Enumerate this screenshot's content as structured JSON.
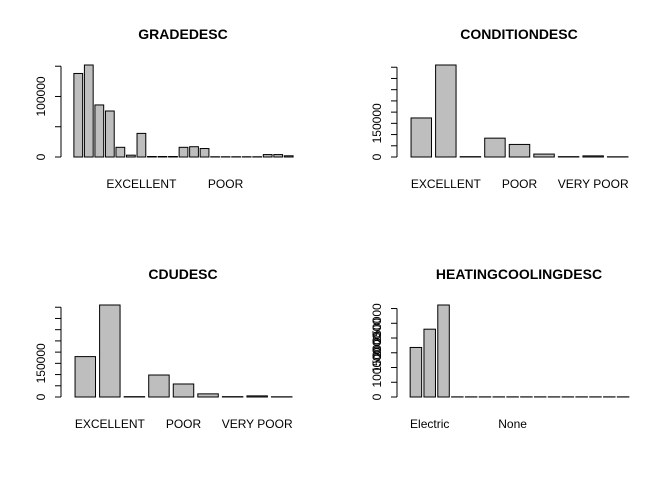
{
  "chart_data": [
    {
      "type": "bar",
      "title": "GRADEDESC",
      "values": [
        138000,
        152000,
        86000,
        76000,
        16000,
        3000,
        39000,
        800,
        800,
        800,
        16000,
        17000,
        14000,
        400,
        400,
        400,
        400,
        400,
        4000,
        4000,
        2000
      ],
      "x_tick_labels": [
        {
          "bar": 6,
          "label": "EXCELLENT"
        },
        {
          "bar": 14,
          "label": "POOR"
        }
      ],
      "y_ticks": [
        0,
        100000
      ],
      "y_tick_marks": [
        0,
        50000,
        100000,
        150000
      ],
      "ylim": [
        0,
        152000
      ],
      "xlabel": "",
      "ylabel": ""
    },
    {
      "type": "bar",
      "title": "CONDITIONDESC",
      "values": [
        174000,
        410000,
        1500,
        84000,
        56000,
        13000,
        1500,
        5000,
        1000
      ],
      "x_tick_labels": [
        {
          "bar": 1,
          "label": "EXCELLENT"
        },
        {
          "bar": 4,
          "label": "POOR"
        },
        {
          "bar": 7,
          "label": "VERY POOR"
        }
      ],
      "y_ticks": [
        0,
        150000
      ],
      "y_tick_marks": [
        0,
        50000,
        100000,
        150000,
        200000,
        250000,
        300000,
        350000,
        400000
      ],
      "ylim": [
        0,
        410000
      ],
      "xlabel": "",
      "ylabel": ""
    },
    {
      "type": "bar",
      "title": "CDUDESC",
      "values": [
        180000,
        410000,
        1500,
        98000,
        58000,
        14000,
        1500,
        5000,
        1000
      ],
      "x_tick_labels": [
        {
          "bar": 1,
          "label": "EXCELLENT"
        },
        {
          "bar": 4,
          "label": "POOR"
        },
        {
          "bar": 7,
          "label": "VERY POOR"
        }
      ],
      "y_ticks": [
        0,
        150000
      ],
      "y_tick_marks": [
        0,
        50000,
        100000,
        150000,
        200000,
        250000,
        300000,
        350000,
        400000
      ],
      "ylim": [
        0,
        410000
      ],
      "xlabel": "",
      "ylabel": ""
    },
    {
      "type": "bar",
      "title": "HEATINGCOOLINGDESC",
      "values": [
        168000,
        230000,
        312000,
        500,
        500,
        500,
        500,
        500,
        500,
        500,
        500,
        500,
        500,
        500,
        500,
        500
      ],
      "x_tick_labels": [
        {
          "bar": 1,
          "label": "Electric"
        },
        {
          "bar": 7,
          "label": "None"
        }
      ],
      "y_ticks": [
        0,
        100000,
        150000,
        200000,
        250000
      ],
      "y_tick_marks": [
        0,
        50000,
        100000,
        150000,
        200000,
        250000,
        300000
      ],
      "ylim": [
        0,
        312000
      ],
      "xlabel": "",
      "ylabel": ""
    }
  ]
}
